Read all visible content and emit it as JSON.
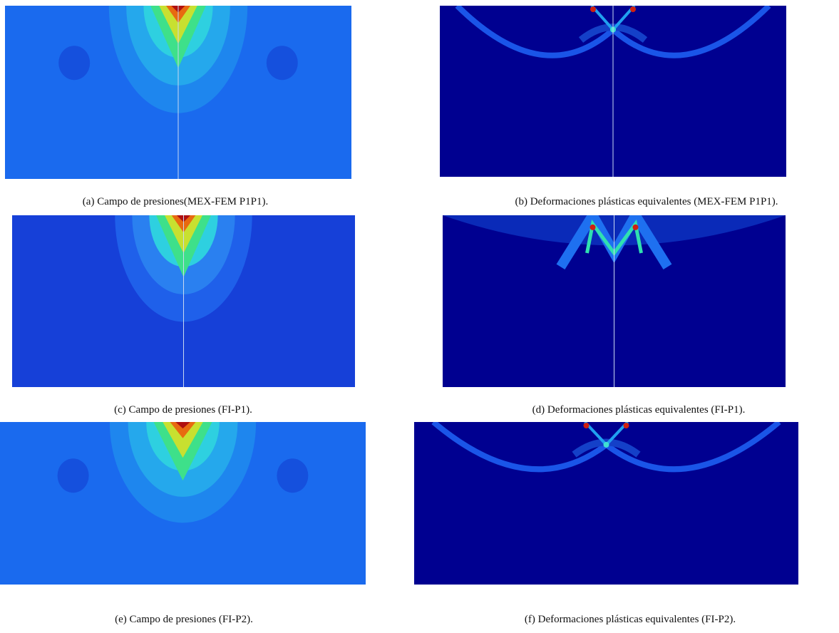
{
  "figures": [
    {
      "caption": "(a) Campo de presiones(MEX-FEM P1P1)."
    },
    {
      "caption": "(b) Deformaciones plásticas equivalentes (MEX-FEM P1P1)."
    },
    {
      "caption": "(c) Campo de presiones (FI-P1)."
    },
    {
      "caption": "(d) Deformaciones plásticas equivalentes (FI-P1)."
    },
    {
      "caption": "(e) Campo de presiones (FI-P2)."
    },
    {
      "caption": "(f) Deformaciones plásticas equivalentes (FI-P2)."
    }
  ]
}
